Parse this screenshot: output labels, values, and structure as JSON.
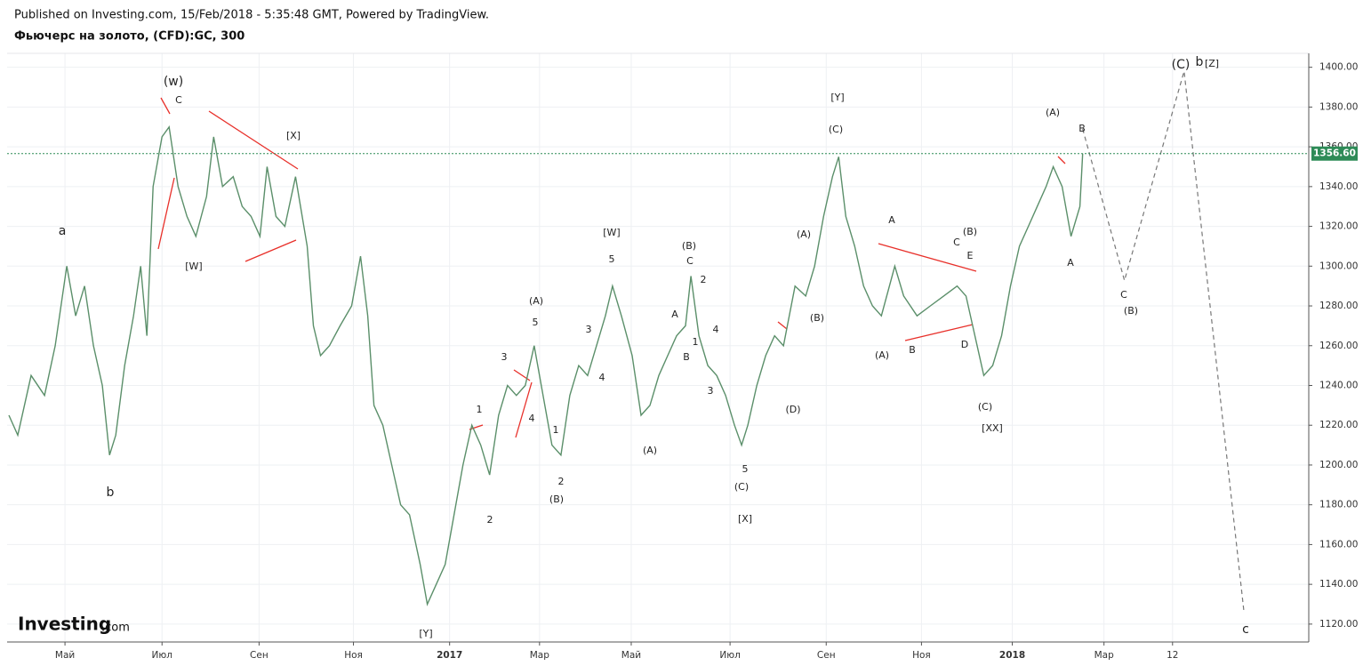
{
  "chart_data": {
    "type": "line",
    "header": "Published on Investing.com, 15/Feb/2018 - 5:35:48 GMT, Powered by TradingView.",
    "title": "Фьючерс на золото, (CFD):GC, 300",
    "logo": "Investing",
    "logo_suffix": ".com",
    "x": [
      -31.5,
      -26.5,
      -19,
      -11.5,
      -5.5,
      1,
      6,
      11,
      16,
      21,
      25,
      28.5,
      33.5,
      38.5,
      42.5,
      46,
      49.5,
      54.5,
      58.5,
      63.5,
      68.5,
      73.5,
      79.5,
      83.5,
      88.5,
      94.5,
      99.5,
      104.5,
      109.5,
      113.5,
      118.5,
      123.5,
      129.5,
      136,
      139.5,
      143.5,
      148.5,
      154.5,
      161,
      166,
      170,
      173.5,
      178.5,
      183.5,
      188.5,
      193.5,
      199.5,
      203.5,
      208.5,
      213.5,
      218.5,
      223.5,
      228.5,
      233.5,
      238.5,
      243.5,
      248.5,
      253.5,
      258.5,
      263.5,
      268.5,
      273.5,
      278.5,
      283.5,
      288.5,
      293.5,
      298.5,
      303.5,
      307.5,
      312.5,
      318.5,
      323.5,
      328.5,
      333.5,
      338.5,
      343.5,
      348.5,
      351.5,
      356,
      361,
      366,
      371,
      376,
      380,
      383.5,
      388.5,
      393.5,
      398.5,
      403.5,
      410,
      416,
      421,
      426,
      431,
      434.5,
      438.5,
      443.5,
      448.5,
      453.5,
      458.5,
      466,
      471,
      478.5,
      486,
      493.5,
      501,
      506,
      511,
      516,
      521,
      526,
      531,
      536,
      541,
      546,
      551,
      555,
      560,
      565,
      570,
      571.5
    ],
    "series": [
      {
        "name": "GC",
        "color": "#5b8f6a",
        "values": [
          1225,
          1215,
          1245,
          1235,
          1260,
          1300,
          1275,
          1290,
          1260,
          1240,
          1205,
          1215,
          1250,
          1275,
          1300,
          1265,
          1340,
          1365,
          1370,
          1340,
          1325,
          1315,
          1335,
          1365,
          1340,
          1345,
          1330,
          1325,
          1315,
          1350,
          1325,
          1320,
          1345,
          1310,
          1270,
          1255,
          1260,
          1270,
          1280,
          1305,
          1275,
          1230,
          1220,
          1200,
          1180,
          1175,
          1150,
          1130,
          1140,
          1150,
          1175,
          1200,
          1220,
          1210,
          1195,
          1225,
          1240,
          1235,
          1240,
          1260,
          1235,
          1210,
          1205,
          1235,
          1250,
          1245,
          1260,
          1275,
          1290,
          1275,
          1255,
          1225,
          1230,
          1245,
          1255,
          1265,
          1270,
          1295,
          1265,
          1250,
          1245,
          1235,
          1220,
          1210,
          1220,
          1240,
          1255,
          1265,
          1260,
          1290,
          1285,
          1300,
          1325,
          1345,
          1355,
          1325,
          1310,
          1290,
          1280,
          1275,
          1300,
          1285,
          1275,
          1280,
          1285,
          1290,
          1285,
          1265,
          1245,
          1250,
          1265,
          1290,
          1310,
          1320,
          1330,
          1340,
          1350,
          1340,
          1315,
          1330,
          1356.6
        ]
      }
    ],
    "projection": {
      "x": [
        571.5,
        595,
        628.5,
        662
      ],
      "values": [
        1369,
        1292.8,
        1398,
        1127
      ],
      "color": "#777777"
    },
    "last_price": {
      "value": 1356.6,
      "label": "1356.60"
    },
    "xlim": [
      -32.5,
      698.5
    ],
    "ylim": [
      1111,
      1407
    ],
    "yticks": [
      {
        "value": 1120,
        "label": "1120.00"
      },
      {
        "value": 1140,
        "label": "1140.00"
      },
      {
        "value": 1160,
        "label": "1160.00"
      },
      {
        "value": 1180,
        "label": "1180.00"
      },
      {
        "value": 1200,
        "label": "1200.00"
      },
      {
        "value": 1220,
        "label": "1220.00"
      },
      {
        "value": 1240,
        "label": "1240.00"
      },
      {
        "value": 1260,
        "label": "1260.00"
      },
      {
        "value": 1280,
        "label": "1280.00"
      },
      {
        "value": 1300,
        "label": "1300.00"
      },
      {
        "value": 1320,
        "label": "1320.00"
      },
      {
        "value": 1340,
        "label": "1340.00"
      },
      {
        "value": 1360,
        "label": "1360.00"
      },
      {
        "value": 1380,
        "label": "1380.00"
      },
      {
        "value": 1400,
        "label": "1400.00"
      }
    ],
    "xticks": [
      {
        "value": 0,
        "label": "Май"
      },
      {
        "value": 54.5,
        "label": "Июл"
      },
      {
        "value": 109,
        "label": "Сен"
      },
      {
        "value": 162,
        "label": "Ноя"
      },
      {
        "value": 216,
        "label": "2017"
      },
      {
        "value": 266.5,
        "label": "Мар"
      },
      {
        "value": 318,
        "label": "Май"
      },
      {
        "value": 373.5,
        "label": "Июл"
      },
      {
        "value": 427.5,
        "label": "Сен"
      },
      {
        "value": 481,
        "label": "Ноя"
      },
      {
        "value": 532,
        "label": "2018"
      },
      {
        "value": 583.5,
        "label": "Мар"
      },
      {
        "value": 622,
        "label": "12"
      }
    ],
    "grid": true,
    "annotations": [
      "(w)",
      "C",
      "a",
      "b",
      "[W]",
      "[X]",
      "[Y]",
      "1",
      "2",
      "3",
      "4",
      "5",
      "(A)",
      "1",
      "2",
      "(B)",
      "3",
      "4",
      "[W]",
      "5",
      "(A)",
      "A",
      "B",
      "1",
      "(B)",
      "C",
      "2",
      "3",
      "4",
      "5",
      "(C)",
      "[X]",
      "(D)",
      "(A)",
      "(B)",
      "[Y]",
      "(C)",
      "A",
      "(A)",
      "B",
      "C",
      "(B)",
      "E",
      "D",
      "(C)",
      "[XX]",
      "(A)",
      "B",
      "A",
      "C",
      "(B)",
      "(C)",
      "b",
      "[Z]",
      "c"
    ]
  }
}
